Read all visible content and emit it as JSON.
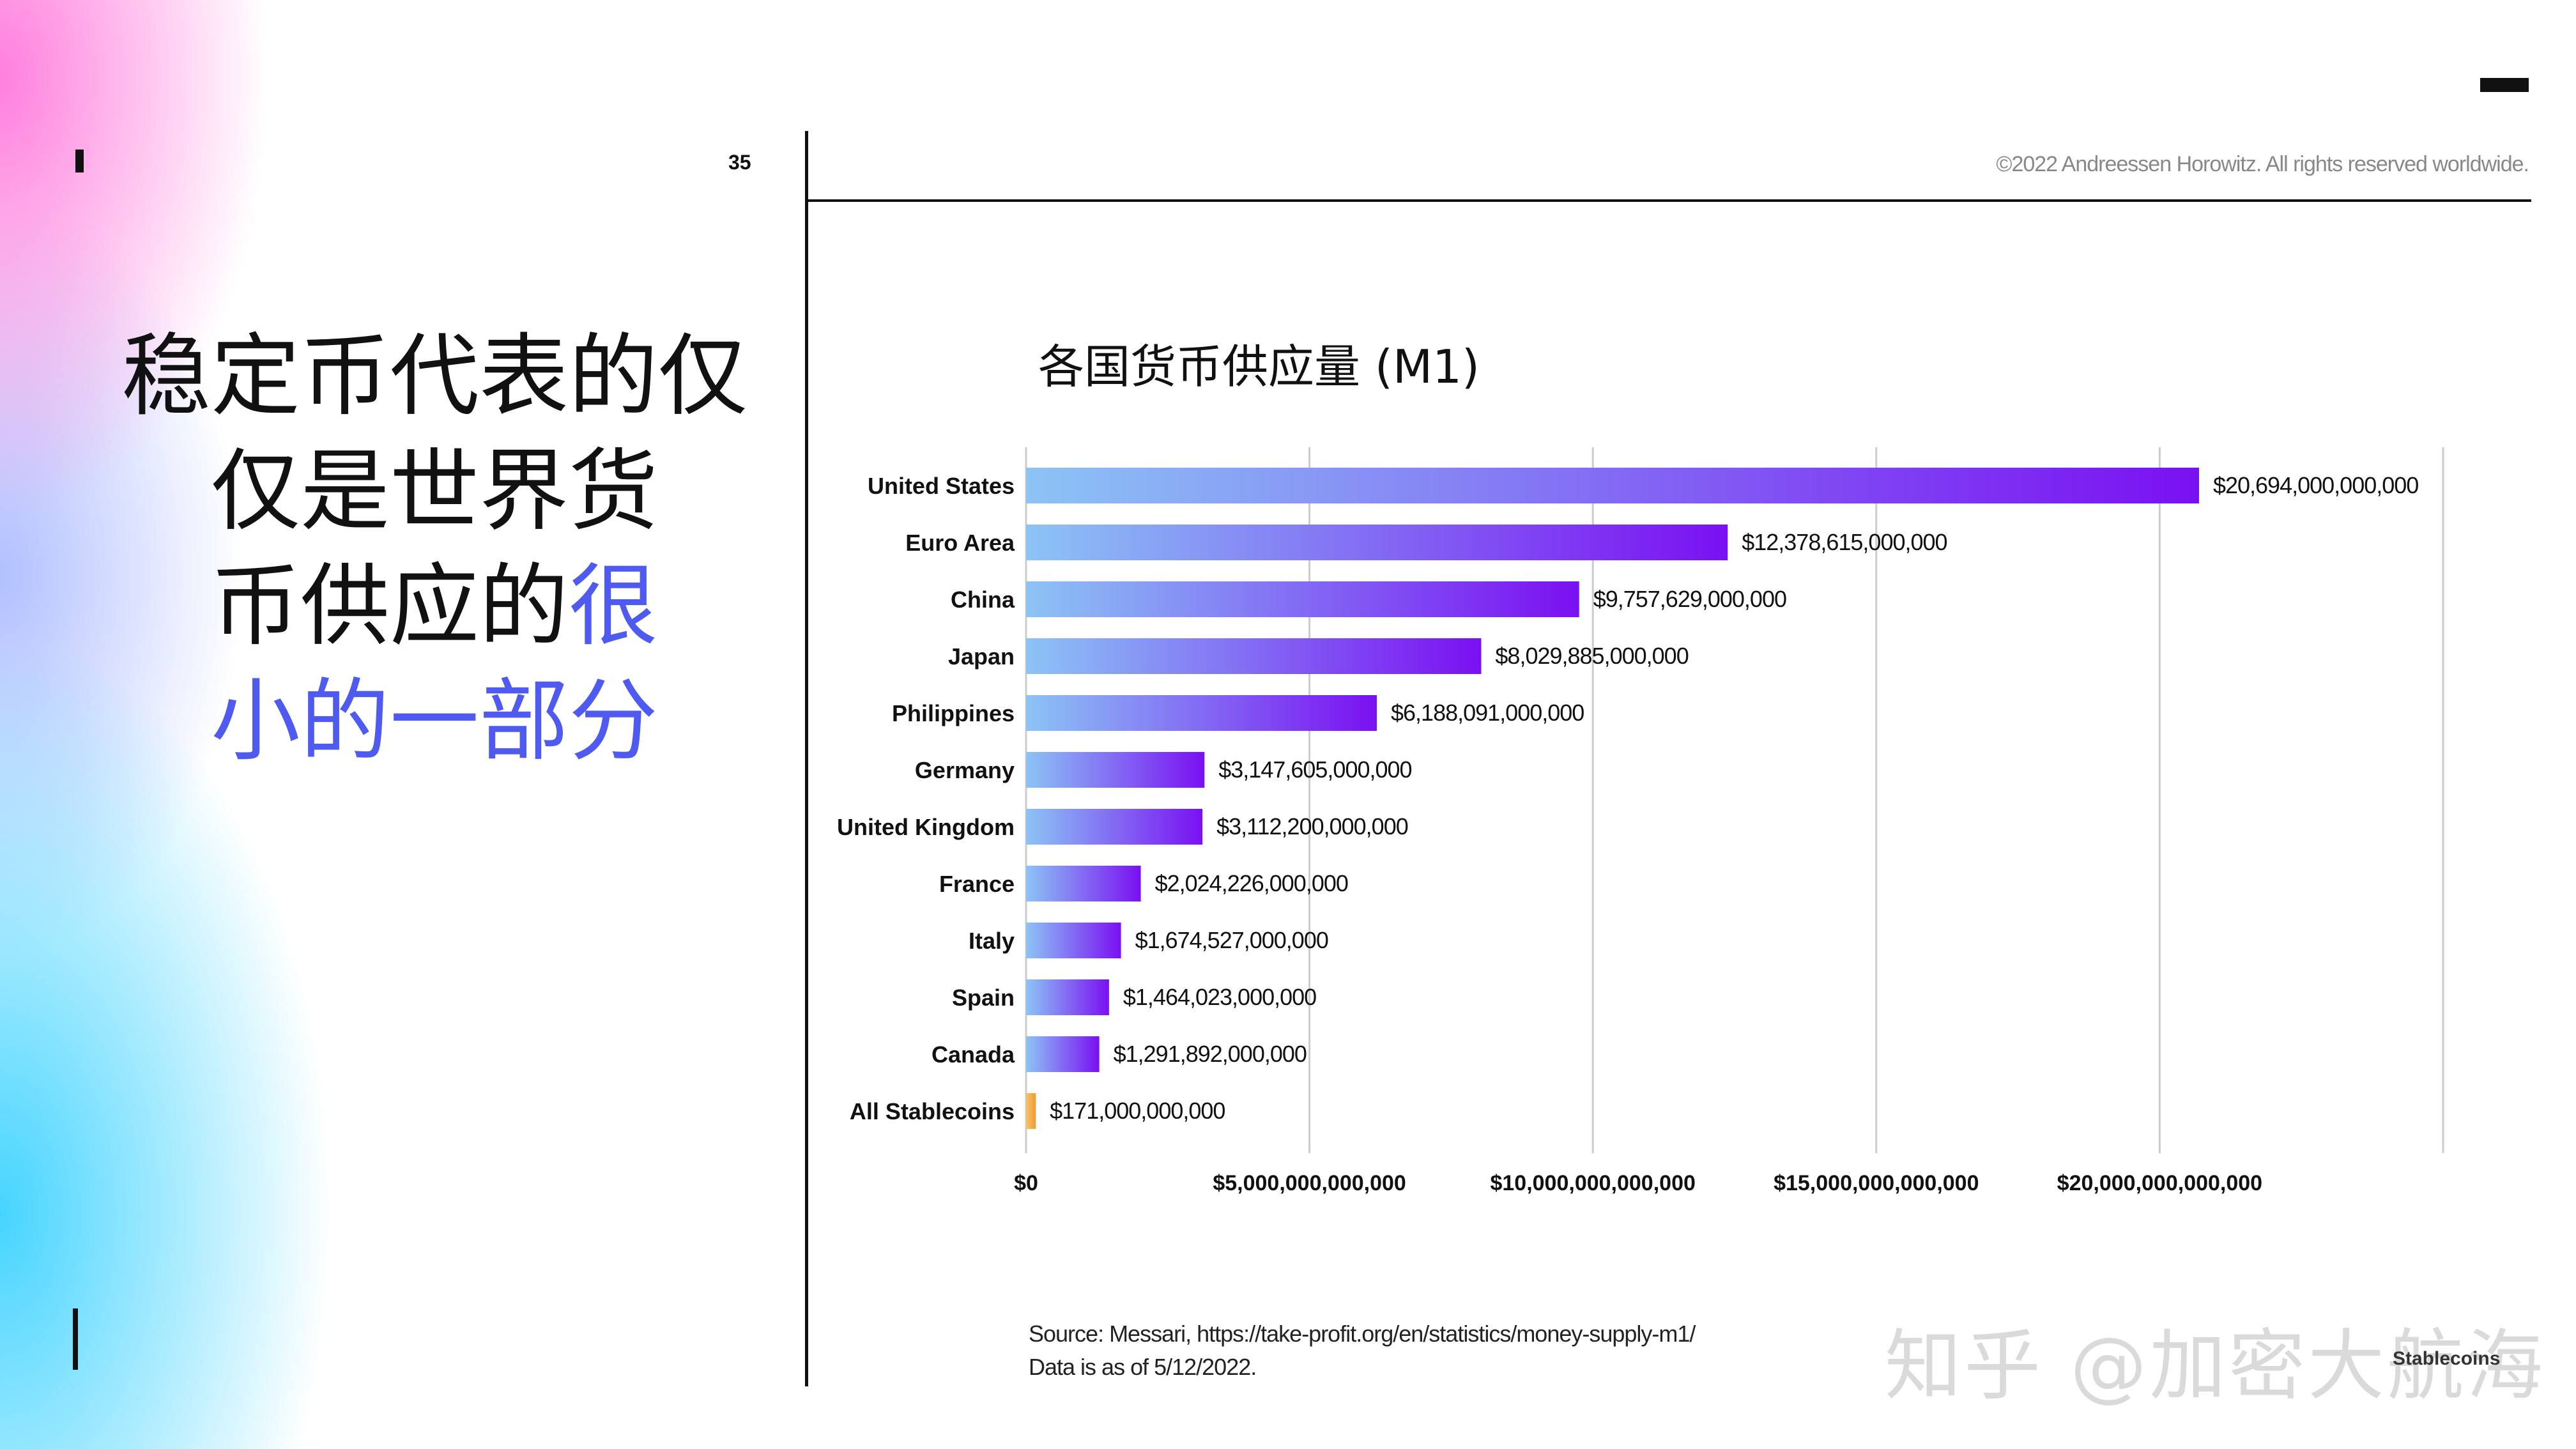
{
  "page": {
    "number": "35",
    "copyright": "©2022 Andreessen Horowitz. All rights reserved worldwide.",
    "headline_line1": "稳定币代表的仅",
    "headline_line2": "仅是世界货",
    "headline_line3_dark": "币供应的",
    "headline_line3_blue": "很",
    "headline_line4_blue": "小的一部分",
    "source_line1": "Source: Messari, https://take-profit.org/en/statistics/money-supply-m1/",
    "source_line2": "Data is as of 5/12/2022.",
    "watermark": "知乎 @加密大航海",
    "corner_label": "Stablecoins",
    "accent_color": "#4f5bf0"
  },
  "chart_data": {
    "type": "bar",
    "orientation": "horizontal",
    "title": "各国货币供应量 (M1)",
    "categories": [
      "United States",
      "Euro Area",
      "China",
      "Japan",
      "Philippines",
      "Germany",
      "United Kingdom",
      "France",
      "Italy",
      "Spain",
      "Canada",
      "All Stablecoins"
    ],
    "values": [
      20694000000000,
      12378615000000,
      9757629000000,
      8029885000000,
      6188091000000,
      3147605000000,
      3112200000000,
      2024226000000,
      1674527000000,
      1464023000000,
      1291892000000,
      171000000000
    ],
    "value_labels": [
      "$20,694,000,000,000",
      "$12,378,615,000,000",
      "$9,757,629,000,000",
      "$8,029,885,000,000",
      "$6,188,091,000,000",
      "$3,147,605,000,000",
      "$3,112,200,000,000",
      "$2,024,226,000,000",
      "$1,674,527,000,000",
      "$1,464,023,000,000",
      "$1,291,892,000,000",
      "$171,000,000,000"
    ],
    "xlim": [
      0,
      25000000000000
    ],
    "xticks": [
      0,
      5000000000000,
      10000000000000,
      15000000000000,
      20000000000000
    ],
    "xtick_labels": [
      "$0",
      "$5,000,000,000,000",
      "$10,000,000,000,000",
      "$15,000,000,000,000",
      "$20,000,000,000,000"
    ],
    "grid": "vertical",
    "colors": {
      "bar_start": "#8cc4f5",
      "bar_end": "#7a10f2",
      "highlight_start": "#f6c26a",
      "highlight_end": "#f29a2e",
      "grid": "#cccccc"
    },
    "highlight_category": "All Stablecoins"
  }
}
